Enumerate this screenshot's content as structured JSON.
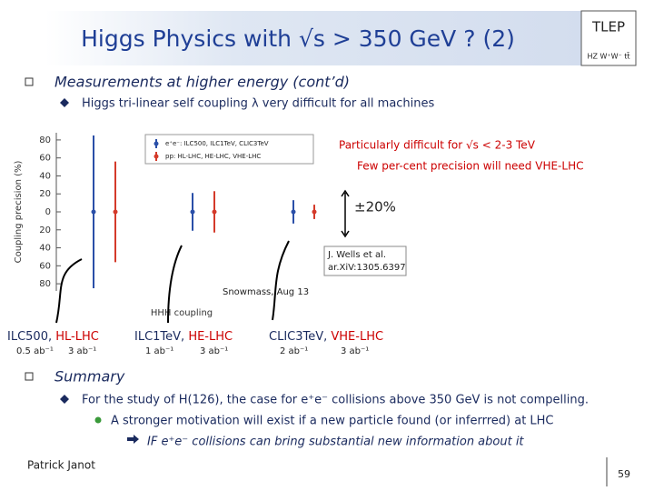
{
  "title": "Higgs Physics with √s > 350 GeV ? (2)",
  "logo": "TLEP",
  "logo_sub": "HZ W⁺W⁻ tt̄",
  "section1": {
    "heading": "Measurements at higher energy (cont’d)",
    "bullet": "Higgs tri-linear self coupling λ very difficult for all machines"
  },
  "chart_data": {
    "type": "errorbar",
    "y_label": "Coupling precision (%)",
    "x_label": "HHH coupling",
    "ylim": [
      -88,
      88
    ],
    "yticks": [
      80,
      60,
      40,
      20,
      0,
      {
        "value": -20,
        "label": "20"
      },
      {
        "value": -40,
        "label": "40"
      },
      {
        "value": -60,
        "label": "60"
      },
      {
        "value": -80,
        "label": "80"
      }
    ],
    "series": [
      {
        "name": "e⁺e⁻: ILC500, ILC1TeV, CLIC3TeV",
        "color": "#2a4fa8",
        "values": [
          0,
          0,
          0
        ],
        "errors": [
          85,
          21,
          13
        ]
      },
      {
        "name": "pp: HL-LHC, HE-LHC, VHE-LHC",
        "color": "#d43a2a",
        "values": [
          0,
          0,
          0
        ],
        "errors": [
          56,
          23,
          8
        ]
      }
    ],
    "annotations": [
      "Particularly difficult for √s < 2-3 TeV",
      "Few per-cent precision will need VHE-LHC",
      "±20%",
      "J. Wells et al.",
      "ar.XiV:1305.6397",
      "Snowmass, Aug 13"
    ]
  },
  "machines": [
    {
      "ee": "ILC500, ",
      "pp": "HL-LHC",
      "lumi_ee": "0.5 ab⁻¹",
      "lumi_pp": "3 ab⁻¹"
    },
    {
      "ee": "ILC1TeV, ",
      "pp": "HE-LHC",
      "lumi_ee": "1 ab⁻¹",
      "lumi_pp": "3 ab⁻¹"
    },
    {
      "ee": "CLIC3TeV, ",
      "pp": "VHE-LHC",
      "lumi_ee": "2 ab⁻¹",
      "lumi_pp": "3 ab⁻¹"
    }
  ],
  "section2": {
    "heading": "Summary",
    "bullet": "For the study of H(126), the case for e⁺e⁻ collisions above 350 GeV is not compelling.",
    "sub": "A stronger motivation will exist if a new particle found (or inferrred) at LHC",
    "subsub": "IF e⁺e⁻ collisions can bring substantial new information about it"
  },
  "footer": {
    "author": "Patrick Janot",
    "page": "59"
  }
}
